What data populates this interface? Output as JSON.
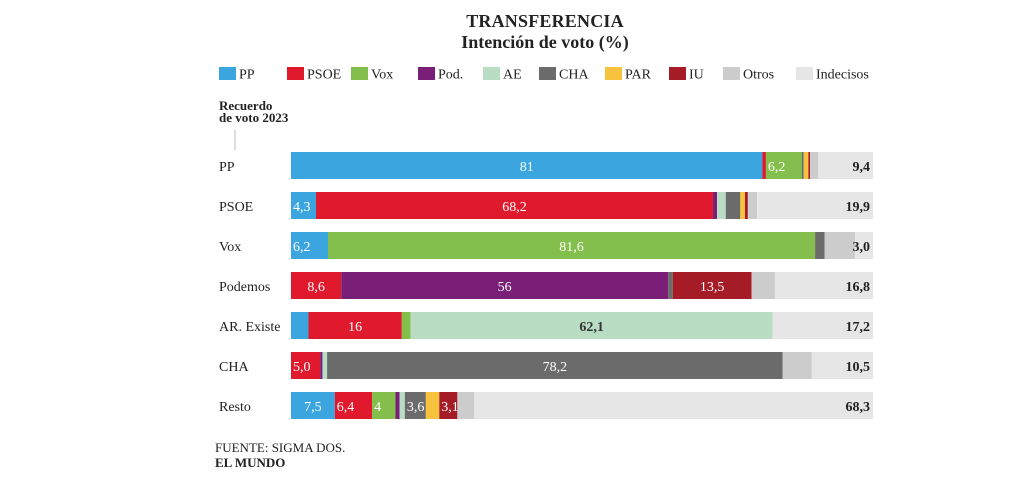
{
  "chart_data": {
    "type": "bar",
    "stacked": true,
    "orientation": "horizontal",
    "title": "TRANSFERENCIA",
    "subtitle": "Intención de voto (%)",
    "row_axis_label": "Recuerdo de voto 2023",
    "row_axis_label_lines": [
      "Recuerdo",
      "de voto 2023"
    ],
    "legend_position": "top",
    "categories": [
      "PP",
      "PSOE",
      "Vox",
      "Podemos",
      "AR. Existe",
      "CHA",
      "Resto"
    ],
    "series": [
      {
        "name": "PP",
        "color": "#3aa5de",
        "values": [
          81,
          4.3,
          6.2,
          0,
          3.0,
          0,
          7.5
        ]
      },
      {
        "name": "PSOE",
        "color": "#e0192d",
        "values": [
          0.6,
          68.2,
          0,
          8.6,
          16,
          5.0,
          6.4
        ]
      },
      {
        "name": "Vox",
        "color": "#84be4d",
        "values": [
          6.2,
          0,
          81.6,
          0,
          1.5,
          0,
          4
        ]
      },
      {
        "name": "Pod.",
        "color": "#7a1f77",
        "values": [
          0,
          0.7,
          0,
          56,
          0,
          0.4,
          0.7
        ]
      },
      {
        "name": "AE",
        "color": "#b9ddc2",
        "values": [
          0,
          1.5,
          0,
          0,
          62.1,
          0.8,
          0.9
        ]
      },
      {
        "name": "CHA",
        "color": "#6b6b6b",
        "values": [
          0.3,
          2.5,
          1.6,
          0.8,
          0,
          78.2,
          3.6
        ]
      },
      {
        "name": "PAR",
        "color": "#f7c23e",
        "values": [
          0.8,
          0.8,
          0,
          0,
          0,
          0,
          2.3
        ]
      },
      {
        "name": "IU",
        "color": "#a51c26",
        "values": [
          0.3,
          0.5,
          0,
          13.5,
          0,
          0,
          3.1
        ]
      },
      {
        "name": "Otros",
        "color": "#cccccc",
        "values": [
          1.4,
          1.6,
          5.1,
          4.0,
          0,
          5.0,
          2.9
        ]
      },
      {
        "name": "Indecisos",
        "color": "#e6e6e6",
        "values": [
          9.4,
          19.9,
          3.0,
          16.8,
          17.2,
          10.5,
          68.3
        ]
      }
    ],
    "value_labels": [
      [
        {
          "series": "PP",
          "text": "81"
        },
        {
          "series": "Vox",
          "text": "6,2"
        },
        {
          "series": "Indecisos",
          "text": "9,4"
        }
      ],
      [
        {
          "series": "PP",
          "text": "4,3"
        },
        {
          "series": "PSOE",
          "text": "68,2"
        },
        {
          "series": "Indecisos",
          "text": "19,9"
        }
      ],
      [
        {
          "series": "PP",
          "text": "6,2"
        },
        {
          "series": "Vox",
          "text": "81,6"
        },
        {
          "series": "Indecisos",
          "text": "3,0"
        }
      ],
      [
        {
          "series": "PSOE",
          "text": "8,6"
        },
        {
          "series": "Pod.",
          "text": "56"
        },
        {
          "series": "IU",
          "text": "13,5"
        },
        {
          "series": "Indecisos",
          "text": "16,8"
        }
      ],
      [
        {
          "series": "PSOE",
          "text": "16"
        },
        {
          "series": "AE",
          "text": "62,1"
        },
        {
          "series": "Indecisos",
          "text": "17,2"
        }
      ],
      [
        {
          "series": "PSOE",
          "text": "5,0"
        },
        {
          "series": "CHA",
          "text": "78,2"
        },
        {
          "series": "Indecisos",
          "text": "10,5"
        }
      ],
      [
        {
          "series": "PP",
          "text": "7,5"
        },
        {
          "series": "PSOE",
          "text": "6,4"
        },
        {
          "series": "Vox",
          "text": "4"
        },
        {
          "series": "CHA",
          "text": "3,6"
        },
        {
          "series": "IU",
          "text": "3,1"
        },
        {
          "series": "Indecisos",
          "text": "68,3"
        }
      ]
    ],
    "xlim": [
      0,
      100
    ],
    "grid": false
  },
  "footer": {
    "source": "FUENTE: SIGMA DOS.",
    "brand": "EL MUNDO"
  }
}
